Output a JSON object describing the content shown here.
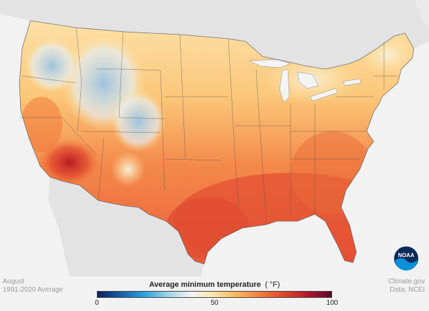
{
  "map": {
    "subject": "Contiguous United States",
    "measure": "Average minimum temperature",
    "unit": "(°F)"
  },
  "caption": {
    "month": "August",
    "period": "1991-2020 Average"
  },
  "credits": {
    "site": "Climate.gov",
    "data": "Data: NCEI"
  },
  "legend": {
    "title": "Average minimum temperature",
    "unit": "( °F)",
    "ticks": [
      {
        "label": "0",
        "value": 0
      },
      {
        "label": "50",
        "value": 50
      },
      {
        "label": "100",
        "value": 100
      }
    ],
    "min": 0,
    "max": 100,
    "colors": [
      "#0b1f5c",
      "#1560a8",
      "#2aa3dc",
      "#9fd3ea",
      "#f4f4f2",
      "#fde3a0",
      "#fbb25c",
      "#f27a3c",
      "#e0452a",
      "#b0182b",
      "#5a0a2a"
    ]
  },
  "palette": {
    "land_background": "#e3e3e3",
    "water": "#f4f4f4",
    "state_border": "#555555",
    "noaa_blue": "#0a5fa8",
    "noaa_navy": "#0b2a5a"
  },
  "logo": {
    "text": "NOAA"
  }
}
